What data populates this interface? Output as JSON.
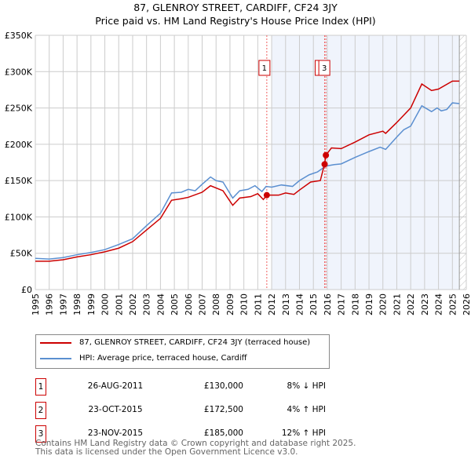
{
  "title": "87, GLENROY STREET, CARDIFF, CF24 3JY",
  "subtitle": "Price paid vs. HM Land Registry's House Price Index (HPI)",
  "chart_data": {
    "type": "line",
    "title": "87, GLENROY STREET, CARDIFF, CF24 3JY",
    "subtitle": "Price paid vs. HM Land Registry's House Price Index (HPI)",
    "xlim": [
      1995,
      2026
    ],
    "ylim": [
      0,
      350000
    ],
    "xticks": [
      "1995",
      "1996",
      "1997",
      "1998",
      "1999",
      "2000",
      "2001",
      "2002",
      "2003",
      "2004",
      "2005",
      "2006",
      "2007",
      "2008",
      "2009",
      "2010",
      "2011",
      "2012",
      "2013",
      "2014",
      "2015",
      "2016",
      "2017",
      "2018",
      "2019",
      "2020",
      "2021",
      "2022",
      "2023",
      "2024",
      "2025",
      "2026"
    ],
    "yticks": [
      {
        "v": 0,
        "l": "£0"
      },
      {
        "v": 50000,
        "l": "£50K"
      },
      {
        "v": 100000,
        "l": "£100K"
      },
      {
        "v": 150000,
        "l": "£150K"
      },
      {
        "v": 200000,
        "l": "£200K"
      },
      {
        "v": 250000,
        "l": "£250K"
      },
      {
        "v": 300000,
        "l": "£300K"
      },
      {
        "v": 350000,
        "l": "£350K"
      }
    ],
    "grid": true,
    "shaded_range": [
      2012,
      2025.5
    ],
    "hatched_from": 2025.5,
    "series": [
      {
        "name": "87, GLENROY STREET, CARDIFF, CF24 3JY (terraced house)",
        "color": "#cc0000",
        "x": [
          1995,
          1996,
          1997,
          1998,
          1999,
          2000,
          2001,
          2002,
          2003,
          2004,
          2004.8,
          2005.5,
          2006,
          2007,
          2007.6,
          2008.5,
          2009.2,
          2009.7,
          2010.5,
          2011,
          2011.4,
          2011.65,
          2012.5,
          2013,
          2013.6,
          2014,
          2014.8,
          2015.5,
          2015.8,
          2015.9,
          2016.3,
          2017,
          2018,
          2019,
          2020,
          2020.2,
          2021,
          2022,
          2022.8,
          2023.5,
          2024,
          2025,
          2025.5
        ],
        "y": [
          39000,
          39000,
          41000,
          45000,
          48000,
          52000,
          57000,
          66000,
          82000,
          98000,
          123000,
          125000,
          127000,
          134000,
          143000,
          136000,
          116000,
          126000,
          128000,
          132000,
          124000,
          130000,
          130000,
          133000,
          131000,
          137000,
          148000,
          150000,
          172500,
          185000,
          195000,
          194000,
          203000,
          213000,
          218000,
          215000,
          230000,
          250000,
          283000,
          274000,
          276000,
          287000,
          287000
        ]
      },
      {
        "name": "HPI: Average price, terraced house, Cardiff",
        "color": "#5b8fd0",
        "x": [
          1995,
          1996,
          1997,
          1998,
          1999,
          2000,
          2001,
          2002,
          2003,
          2004,
          2004.8,
          2005.5,
          2006,
          2006.5,
          2007,
          2007.6,
          2008,
          2008.5,
          2009.2,
          2009.7,
          2010.3,
          2010.8,
          2011.3,
          2011.6,
          2012,
          2012.7,
          2013.5,
          2014,
          2014.7,
          2015.3,
          2015.9,
          2016.5,
          2017,
          2018,
          2019,
          2019.8,
          2020.2,
          2021,
          2021.5,
          2022,
          2022.8,
          2023.5,
          2023.9,
          2024.2,
          2024.6,
          2025,
          2025.5
        ],
        "y": [
          43000,
          42000,
          44000,
          48000,
          51000,
          55000,
          62000,
          70000,
          88000,
          105000,
          133000,
          134000,
          138000,
          136000,
          145000,
          155000,
          150000,
          148000,
          126000,
          136000,
          138000,
          143000,
          135000,
          142000,
          141000,
          144000,
          142000,
          150000,
          158000,
          162000,
          170000,
          172000,
          173000,
          182000,
          190000,
          196000,
          193000,
          210000,
          220000,
          225000,
          253000,
          245000,
          250000,
          246000,
          248000,
          257000,
          256000
        ]
      }
    ],
    "sales": [
      {
        "id": "1",
        "date": "26-AUG-2011",
        "x": 2011.65,
        "price": 130000,
        "price_label": "£130,000",
        "hpi": "8% ↓ HPI"
      },
      {
        "id": "2",
        "date": "23-OCT-2015",
        "x": 2015.81,
        "price": 172500,
        "price_label": "£172,500",
        "hpi": "4% ↑ HPI"
      },
      {
        "id": "3",
        "date": "23-NOV-2015",
        "x": 2015.9,
        "price": 185000,
        "price_label": "£185,000",
        "hpi": "12% ↑ HPI"
      }
    ]
  },
  "footer": [
    "Contains HM Land Registry data © Crown copyright and database right 2025.",
    "This data is licensed under the Open Government Licence v3.0."
  ]
}
